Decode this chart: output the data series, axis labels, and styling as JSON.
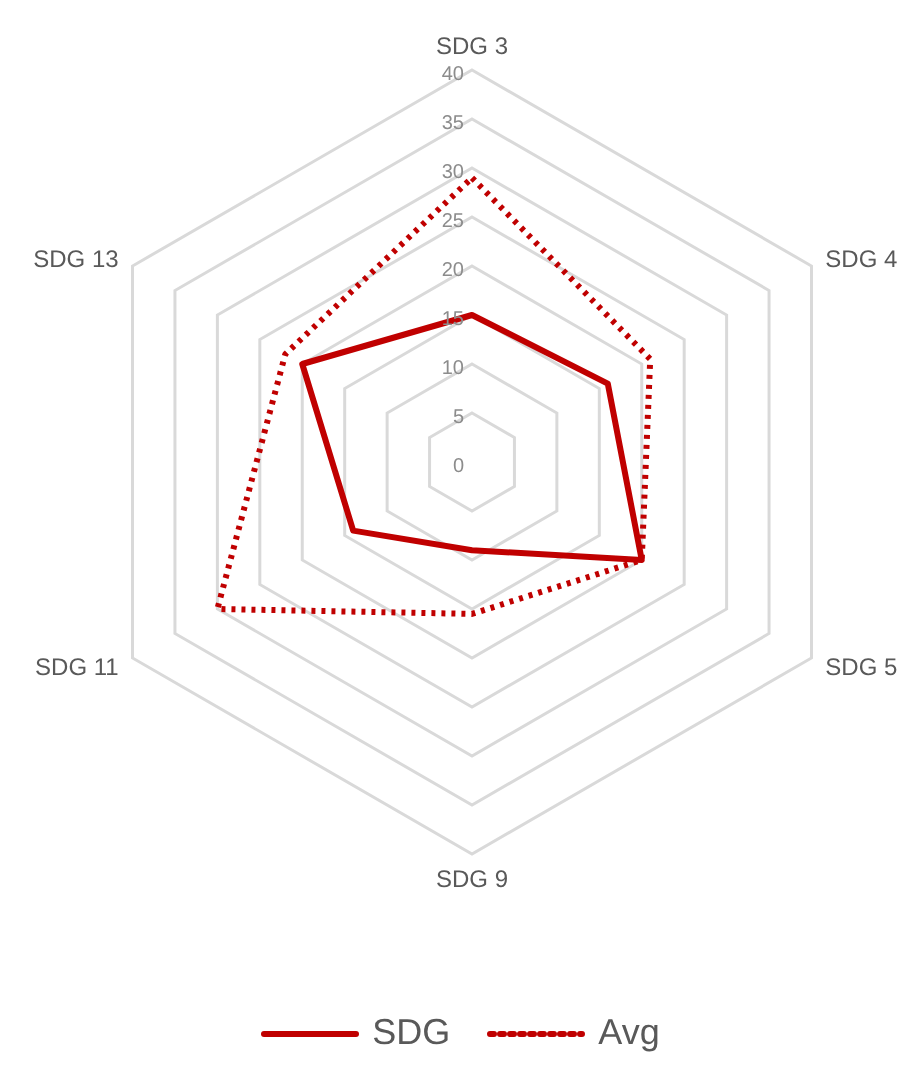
{
  "chart_data": {
    "type": "radar",
    "categories": [
      "SDG 3",
      "SDG 4",
      "SDG 5",
      "SDG 9",
      "SDG 11",
      "SDG 13"
    ],
    "series": [
      {
        "name": "SDG",
        "color": "#c00000",
        "line_style": "solid",
        "values": [
          15,
          16,
          20,
          9,
          14,
          20
        ]
      },
      {
        "name": "Avg",
        "color": "#c00000",
        "line_style": "dotted",
        "values": [
          29,
          21,
          20,
          15.5,
          30,
          22
        ]
      }
    ],
    "ylim": [
      0,
      40
    ],
    "yticks": [
      0,
      5,
      10,
      15,
      20,
      25,
      30,
      35,
      40
    ],
    "grid": true,
    "legend": "bottom",
    "marker": "none"
  }
}
